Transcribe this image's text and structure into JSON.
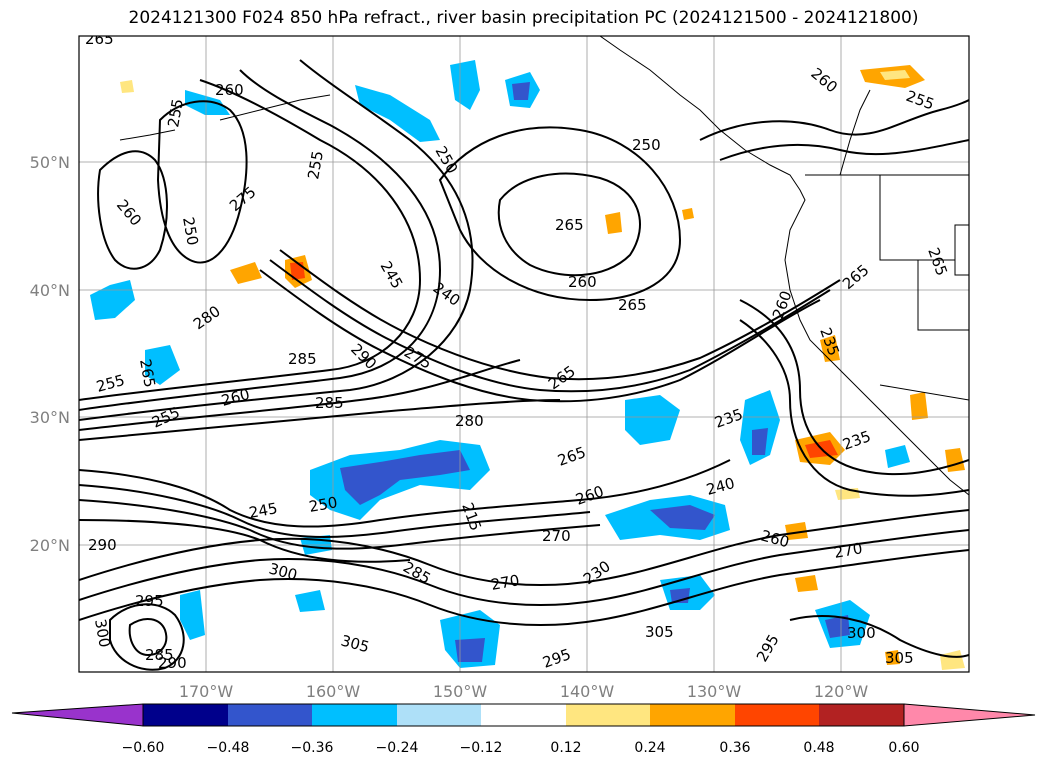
{
  "title": "2024121300 F024 850 hPa refract., river basin precipitation PC (2024121500 - 2024121800)",
  "axes": {
    "longitude_labels": [
      "170°W",
      "160°W",
      "150°W",
      "140°W",
      "130°W",
      "120°W"
    ],
    "latitude_labels": [
      "50°N",
      "40°N",
      "30°N",
      "20°N"
    ]
  },
  "contour_labels": [
    "265",
    "260",
    "255",
    "250",
    "255",
    "260",
    "275",
    "250",
    "255",
    "260",
    "250",
    "245",
    "240",
    "265",
    "260",
    "265",
    "280",
    "290",
    "285",
    "275",
    "265",
    "255",
    "260",
    "255",
    "285",
    "280",
    "265",
    "235",
    "240",
    "260",
    "250",
    "215",
    "245",
    "270",
    "300",
    "290",
    "285",
    "270",
    "230",
    "260",
    "270",
    "295",
    "305",
    "305",
    "285",
    "290",
    "300",
    "295",
    "295",
    "300",
    "305",
    "235",
    "265",
    "260",
    "265",
    "265",
    "235"
  ],
  "colorbar": {
    "ticks": [
      "−0.60",
      "−0.48",
      "−0.36",
      "−0.24",
      "−0.12",
      "0.12",
      "0.24",
      "0.36",
      "0.48",
      "0.60"
    ],
    "colors": [
      "#9933cc",
      "#00008b",
      "#3355cc",
      "#00bfff",
      "#aee0f8",
      "#ffffff",
      "#ffe680",
      "#ffa500",
      "#ff4500",
      "#b22222",
      "#ff88aa"
    ]
  }
}
